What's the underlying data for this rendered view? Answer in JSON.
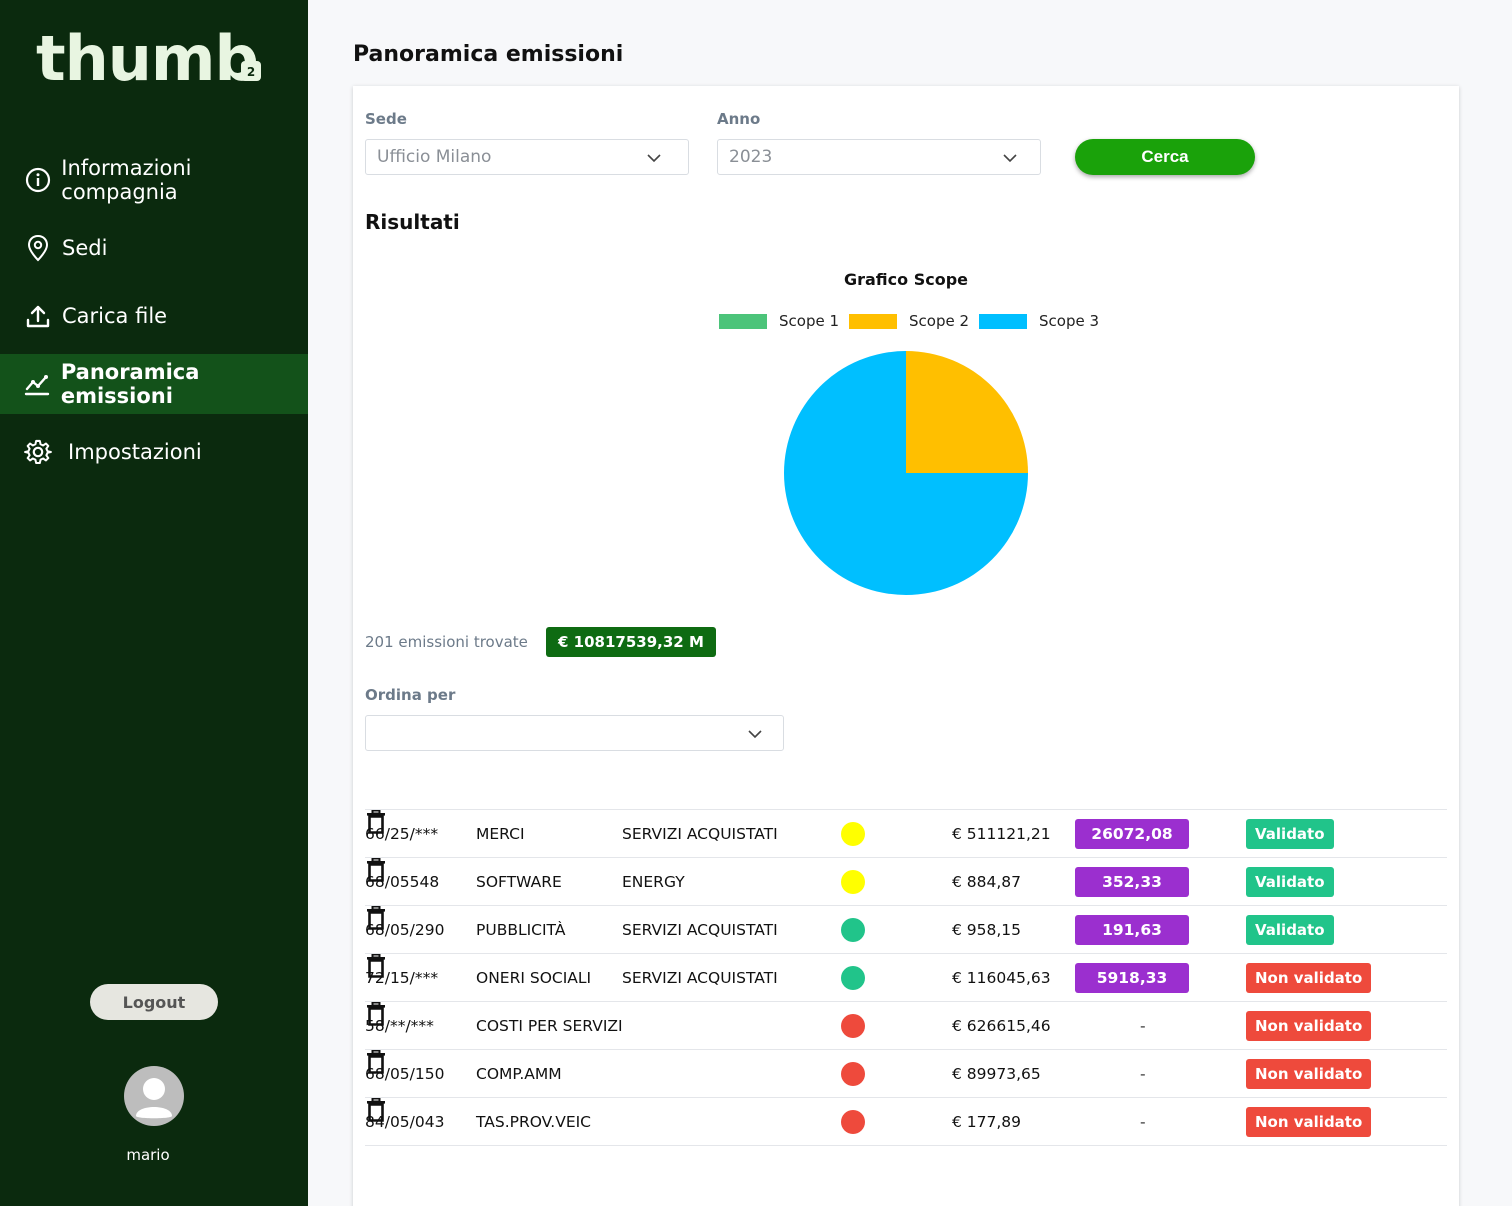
{
  "app": {
    "logo_text": "thumb"
  },
  "sidebar": {
    "items": [
      {
        "label": "Informazioni compagnia",
        "icon": "info-icon",
        "active": false
      },
      {
        "label": "Sedi",
        "icon": "location-pin-icon",
        "active": false
      },
      {
        "label": "Carica file",
        "icon": "upload-icon",
        "active": false
      },
      {
        "label": "Panoramica emissioni",
        "icon": "chart-line-icon",
        "active": true
      },
      {
        "label": "Impostazioni",
        "icon": "gear-icon",
        "active": false
      }
    ],
    "logout_label": "Logout",
    "username": "mario"
  },
  "page": {
    "title": "Panoramica emissioni"
  },
  "filters": {
    "sede_label": "Sede",
    "sede_value": "Ufficio Milano",
    "anno_label": "Anno",
    "anno_value": "2023",
    "search_label": "Cerca"
  },
  "results": {
    "title": "Risultati",
    "found_text": "201 emissioni trovate",
    "total_badge": "€ 10817539,32 M"
  },
  "sort": {
    "label": "Ordina per",
    "value": ""
  },
  "chart_data": {
    "type": "pie",
    "title": "Grafico Scope",
    "legend_position": "top",
    "labels": [
      "Scope 1",
      "Scope 2",
      "Scope 3"
    ],
    "values": [
      0,
      25,
      75
    ],
    "colors": [
      "#4cc47a",
      "#ffbf00",
      "#00bfff"
    ]
  },
  "colors": {
    "sidebar_bg": "#0b2a0e",
    "sidebar_active": "#13521a",
    "accent_green": "#1aa20a",
    "value_badge": "#9b2fcf",
    "validated": "#21c48a",
    "not_validated": "#ee4a3c",
    "dot_yellow": "#ffff00",
    "dot_green": "#21c48a",
    "dot_red": "#ee4a3c"
  },
  "rows": [
    {
      "code": "66/25/***",
      "description": "MERCI",
      "category": "SERVIZI ACQUISTATI",
      "dot": "#ffff00",
      "amount": "€ 511121,21",
      "value": "26072,08",
      "status": "Validato",
      "status_color": "#21c48a"
    },
    {
      "code": "68/05548",
      "description": "SOFTWARE",
      "category": "ENERGY",
      "dot": "#ffff00",
      "amount": "€ 884,87",
      "value": "352,33",
      "status": "Validato",
      "status_color": "#21c48a"
    },
    {
      "code": "68/05/290",
      "description": "PUBBLICITÀ",
      "category": "SERVIZI ACQUISTATI",
      "dot": "#21c48a",
      "amount": "€ 958,15",
      "value": "191,63",
      "status": "Validato",
      "status_color": "#21c48a"
    },
    {
      "code": "72/15/***",
      "description": "ONERI SOCIALI",
      "category": "SERVIZI ACQUISTATI",
      "dot": "#21c48a",
      "amount": "€ 116045,63",
      "value": "5918,33",
      "status": "Non validato",
      "status_color": "#ee4a3c"
    },
    {
      "code": "58/**/***",
      "description": "COSTI PER SERVIZI",
      "category": "",
      "dot": "#ee4a3c",
      "amount": "€ 626615,46",
      "value": "-",
      "status": "Non validato",
      "status_color": "#ee4a3c"
    },
    {
      "code": "68/05/150",
      "description": "COMP.AMM",
      "category": "",
      "dot": "#ee4a3c",
      "amount": "€ 89973,65",
      "value": "-",
      "status": "Non validato",
      "status_color": "#ee4a3c"
    },
    {
      "code": "84/05/043",
      "description": "TAS.PROV.VEIC",
      "category": "",
      "dot": "#ee4a3c",
      "amount": "€ 177,89",
      "value": "-",
      "status": "Non validato",
      "status_color": "#ee4a3c"
    }
  ]
}
